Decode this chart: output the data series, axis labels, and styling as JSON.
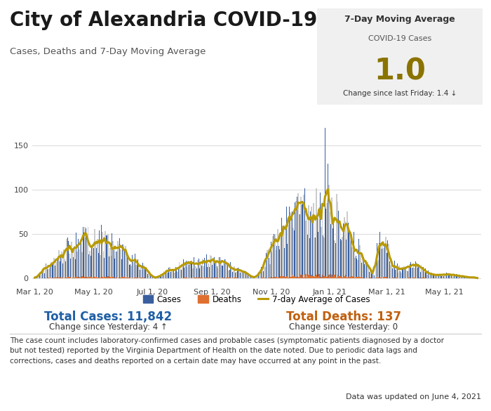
{
  "title": "City of Alexandria COVID-19",
  "subtitle": "Cases, Deaths and 7-Day Moving Average",
  "bg_color": "#ffffff",
  "chart_bg": "#ffffff",
  "box_bg": "#f0f0f0",
  "box_title": "7-Day Moving Average",
  "box_subtitle": "COVID-19 Cases",
  "box_value": "1.0",
  "box_value_color": "#8b7300",
  "box_change_text": "Change since last Friday: ",
  "box_change_value": "1.4",
  "box_change_arrow": "↓",
  "total_cases_label": "Total Cases: 11,842",
  "total_cases_color": "#1f5fa6",
  "cases_change": "Change since Yesterday: 4 ↑",
  "total_deaths_label": "Total Deaths: 137",
  "total_deaths_color": "#c06010",
  "deaths_change": "Change since Yesterday: 0",
  "footnote_line1": "The case count includes laboratory-confirmed cases and probable cases (symptomatic patients diagnosed by a doctor",
  "footnote_line2": "but not tested) reported by the Virginia Department of Health on the date noted. Due to periodic data lags and",
  "footnote_line3": "corrections, cases and deaths reported on a certain date may have occurred at any point in the past.",
  "updated_normal": "Data was updated on ",
  "updated_bold": "June 4, 2021",
  "legend_cases": "Cases",
  "legend_deaths": "Deaths",
  "legend_avg": "7-day Average of Cases",
  "bar_grey": "#cccccc",
  "bar_blue": "#3a5f9f",
  "bar_orange": "#e07030",
  "avg_color": "#b89a00",
  "x_labels": [
    "Mar 1, 20",
    "May 1, 20",
    "Jul 1, 20",
    "Sep 1, 20",
    "Nov 1, 20",
    "Jan 1, 21",
    "Mar 1, 21",
    "May 1, 21"
  ],
  "y_ticks": [
    0,
    50,
    100,
    150
  ],
  "ylim": [
    -8,
    180
  ],
  "n_points": 460,
  "seed": 42
}
